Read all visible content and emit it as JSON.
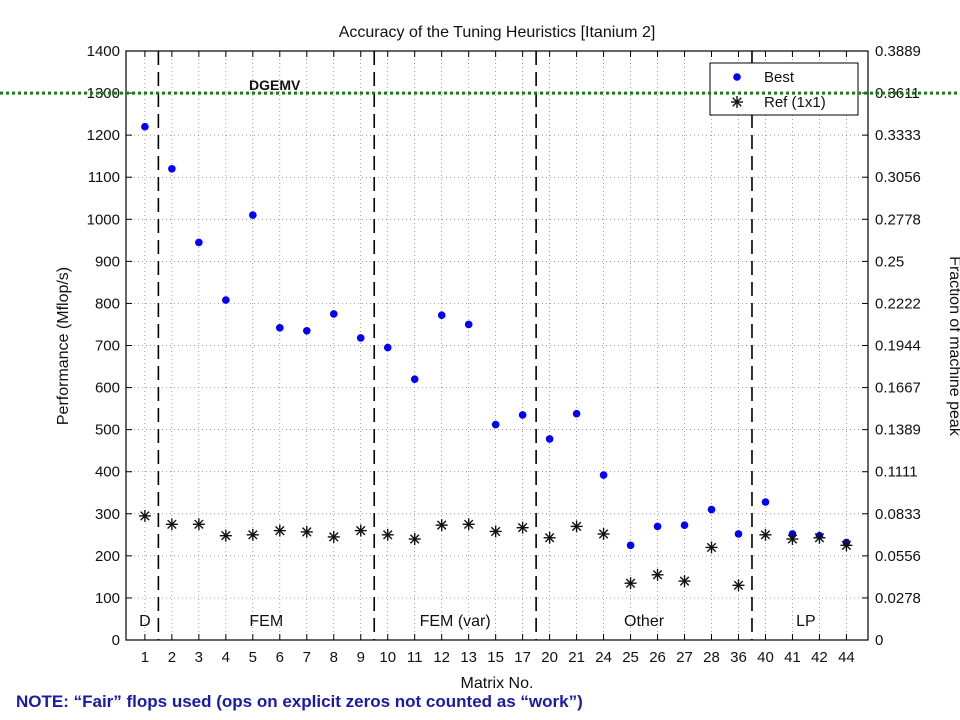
{
  "chart_data": {
    "type": "scatter",
    "title": "Accuracy of the Tuning Heuristics [Itanium 2]",
    "xlabel": "Matrix No.",
    "ylabel": "Performance (Mflop/s)",
    "ylabel_right": "Fraction of machine peak",
    "ylim": [
      0,
      1400
    ],
    "y_ticks": [
      0,
      100,
      200,
      300,
      400,
      500,
      600,
      700,
      800,
      900,
      1000,
      1100,
      1200,
      1300,
      1400
    ],
    "y_right_ticks": [
      "0",
      "0.0278",
      "0.0556",
      "0.0833",
      "0.1111",
      "0.1389",
      "0.1667",
      "0.1944",
      "0.2222",
      "0.25",
      "0.2778",
      "0.3056",
      "0.3333",
      "0.3611",
      "0.3889"
    ],
    "categories": [
      "1",
      "2",
      "3",
      "4",
      "5",
      "6",
      "7",
      "8",
      "9",
      "10",
      "11",
      "12",
      "13",
      "15",
      "17",
      "20",
      "21",
      "24",
      "25",
      "26",
      "27",
      "28",
      "36",
      "40",
      "41",
      "42",
      "44"
    ],
    "grid": true,
    "legend_position": "top-right",
    "series": [
      {
        "name": "Best",
        "marker": "dot",
        "color": "#0000ff",
        "values": [
          1220,
          1120,
          945,
          808,
          1010,
          742,
          735,
          775,
          718,
          695,
          620,
          772,
          750,
          512,
          535,
          478,
          538,
          392,
          225,
          270,
          273,
          310,
          252,
          328,
          252,
          248,
          232
        ]
      },
      {
        "name": "Ref (1x1)",
        "marker": "asterisk",
        "color": "#111111",
        "values": [
          295,
          275,
          275,
          248,
          250,
          260,
          257,
          245,
          260,
          250,
          240,
          273,
          275,
          258,
          267,
          243,
          270,
          252,
          135,
          155,
          140,
          220,
          130,
          250,
          240,
          243,
          225
        ]
      }
    ],
    "groups": [
      {
        "label": "D",
        "start": 0,
        "end": 0
      },
      {
        "label": "FEM",
        "start": 1,
        "end": 8
      },
      {
        "label": "FEM (var)",
        "start": 9,
        "end": 14
      },
      {
        "label": "Other",
        "start": 15,
        "end": 22
      },
      {
        "label": "LP",
        "start": 23,
        "end": 26
      }
    ],
    "reference_line": {
      "label": "DGEMV",
      "value": 1300
    }
  },
  "note": "NOTE: “Fair” flops used (ops on explicit zeros not counted as “work”)"
}
